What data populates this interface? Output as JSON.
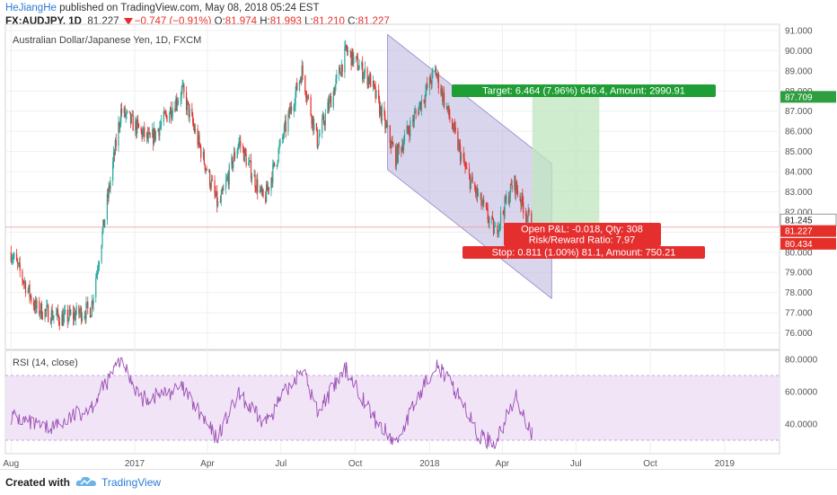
{
  "header": {
    "author": "HeJiangHe",
    "published": " published on TradingView.com, May 08, 2018 05:24 EST",
    "symbol": "FX:AUDJPY, 1D",
    "last": "81.227",
    "change": "−0.747 (−0.91%)",
    "o_label": "O:",
    "o": "81.974",
    "h_label": "H:",
    "h": "81.993",
    "l_label": "L:",
    "l": "81.210",
    "c_label": "C:",
    "c": "81.227"
  },
  "footer": {
    "created": "Created with",
    "brand": "TradingView"
  },
  "colors": {
    "up": "#26a69a",
    "down": "#e5302a",
    "channel": "#b9b3dd",
    "target": "#bfe6bf",
    "rsi": "#9c4fb5",
    "rsi_band": "#f1e4f7"
  },
  "chart_data": [
    {
      "type": "candlestick",
      "title": "Australian Dollar/Japanese Yen, 1D, FXCM",
      "x_ticks": [
        "Aug",
        "2017",
        "Apr",
        "Jul",
        "Oct",
        "2018",
        "Apr",
        "Jul",
        "Oct",
        "2019"
      ],
      "y_ticks": [
        "76.000",
        "77.000",
        "78.000",
        "79.000",
        "80.000",
        "81.000",
        "82.000",
        "83.000",
        "84.000",
        "85.000",
        "86.000",
        "87.000",
        "88.000",
        "89.000",
        "90.000",
        "91.000"
      ],
      "ylim": [
        75.5,
        91.3
      ],
      "price_path": [
        [
          "2016-08-01",
          80.0
        ],
        [
          "2016-09-01",
          77.2
        ],
        [
          "2016-10-05",
          76.7
        ],
        [
          "2016-11-08",
          77.2
        ],
        [
          "2016-12-15",
          87.0
        ],
        [
          "2017-01-20",
          85.5
        ],
        [
          "2017-03-01",
          88.0
        ],
        [
          "2017-04-15",
          82.2
        ],
        [
          "2017-05-10",
          85.5
        ],
        [
          "2017-06-10",
          82.5
        ],
        [
          "2017-07-27",
          89.0
        ],
        [
          "2017-08-15",
          85.5
        ],
        [
          "2017-09-20",
          90.0
        ],
        [
          "2017-10-20",
          88.5
        ],
        [
          "2017-11-20",
          84.7
        ],
        [
          "2018-01-08",
          89.0
        ],
        [
          "2018-02-15",
          84.0
        ],
        [
          "2018-03-23",
          81.0
        ],
        [
          "2018-04-15",
          83.5
        ],
        [
          "2018-05-08",
          81.2
        ]
      ],
      "price_labels": [
        {
          "value": "87.709",
          "color": "#2e9e3f"
        },
        {
          "value": "81.245",
          "color": "#333333"
        },
        {
          "value": "81.227",
          "color": "#e5302a"
        },
        {
          "value": "80.434",
          "color": "#e5302a"
        }
      ],
      "channel": {
        "start": [
          "2017-11-10",
          90.8
        ],
        "end": [
          "2018-06-01",
          84.4
        ],
        "width": -6.7
      },
      "position": {
        "entry": 81.245,
        "target": 87.709,
        "stop": 80.434,
        "x_start": "2018-05-08",
        "x_end": "2018-07-30",
        "target_label": "Target: 6.464 (7.96%) 646.4, Amount: 2990.91",
        "pnl_label": "Open P&L: -0.018, Qty: 308",
        "rr_label": "Risk/Reward Ratio: 7.97",
        "stop_label": "Stop: 0.811 (1.00%) 81.1, Amount: 750.21"
      }
    },
    {
      "type": "line",
      "title": "RSI (14, close)",
      "y_ticks": [
        "40.0000",
        "60.0000",
        "80.0000"
      ],
      "ylim": [
        22,
        83
      ],
      "band": [
        30,
        70
      ],
      "path": [
        [
          "2016-08-01",
          45
        ],
        [
          "2016-09-10",
          37
        ],
        [
          "2016-10-05",
          41
        ],
        [
          "2016-11-10",
          52
        ],
        [
          "2016-12-15",
          80
        ],
        [
          "2017-01-10",
          55
        ],
        [
          "2017-03-01",
          62
        ],
        [
          "2017-04-12",
          31
        ],
        [
          "2017-05-10",
          58
        ],
        [
          "2017-06-10",
          40
        ],
        [
          "2017-07-27",
          75
        ],
        [
          "2017-08-15",
          48
        ],
        [
          "2017-09-20",
          74
        ],
        [
          "2017-10-25",
          43
        ],
        [
          "2017-11-20",
          28
        ],
        [
          "2018-01-08",
          78
        ],
        [
          "2018-02-10",
          55
        ],
        [
          "2018-03-01",
          33
        ],
        [
          "2018-03-23",
          28
        ],
        [
          "2018-04-18",
          57
        ],
        [
          "2018-05-08",
          33
        ]
      ]
    }
  ]
}
